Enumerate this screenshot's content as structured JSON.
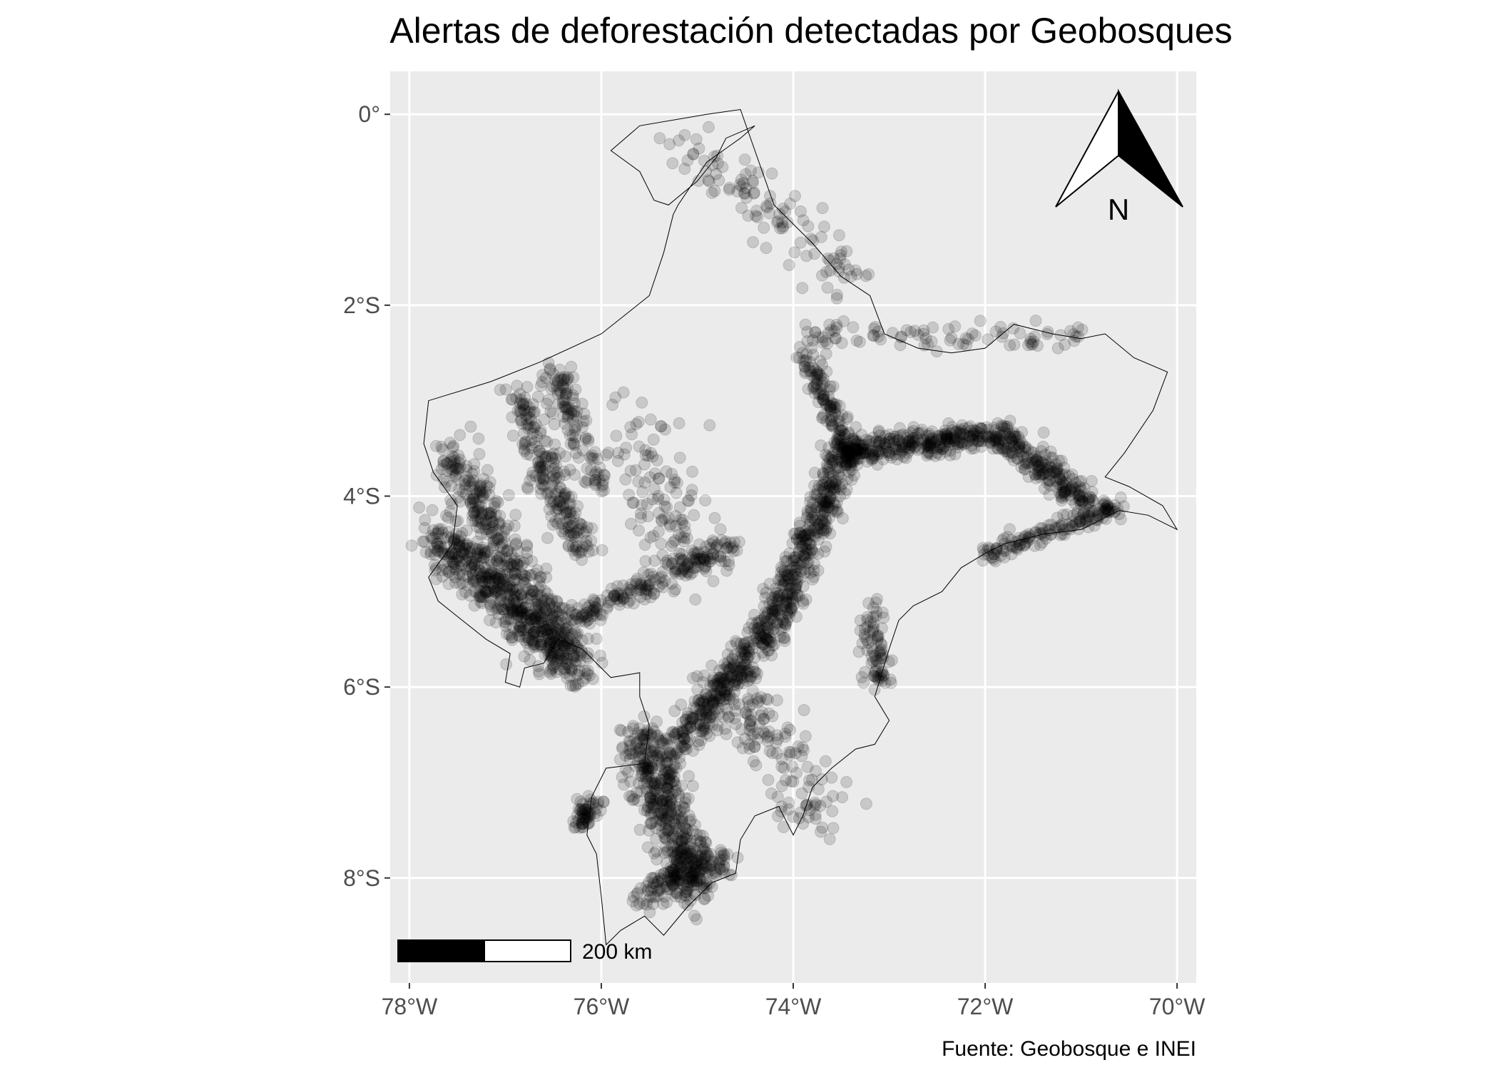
{
  "title": "Alertas de deforestación detectadas por Geobosques",
  "caption": "Fuente: Geobosque e INEI",
  "north_arrow_label": "N",
  "scale_bar_label": "200 km",
  "colors": {
    "panel_background": "#ebebeb",
    "grid_line": "#ffffff",
    "point": "#000000",
    "boundary": "#000000",
    "tick_label": "#4d4d4d"
  },
  "chart_data": {
    "type": "scatter",
    "title": "Alertas de deforestación detectadas por Geobosques",
    "caption": "Fuente: Geobosque e INEI",
    "x_axis": {
      "unit": "longitude_deg",
      "range": [
        -78.2,
        -69.8
      ],
      "ticks": [
        -78,
        -76,
        -74,
        -72,
        -70
      ],
      "tick_labels": [
        "78°W",
        "76°W",
        "74°W",
        "72°W",
        "70°W"
      ]
    },
    "y_axis": {
      "unit": "latitude_deg",
      "range": [
        -9.1,
        0.45
      ],
      "ticks": [
        0,
        -2,
        -4,
        -6,
        -8
      ],
      "tick_labels": [
        "0°",
        "2°S",
        "4°S",
        "6°S",
        "8°S"
      ]
    },
    "grid": true,
    "point_opacity": 0.15,
    "boundary_polygon": [
      [
        -74.4,
        -0.12
      ],
      [
        -74.7,
        -0.25
      ],
      [
        -74.8,
        -0.45
      ],
      [
        -75.0,
        -0.7
      ],
      [
        -75.3,
        -0.95
      ],
      [
        -75.45,
        -0.9
      ],
      [
        -75.6,
        -0.6
      ],
      [
        -75.9,
        -0.38
      ],
      [
        -75.6,
        -0.12
      ],
      [
        -74.9,
        0.0
      ],
      [
        -74.55,
        0.05
      ],
      [
        -74.2,
        -0.95
      ],
      [
        -73.8,
        -1.35
      ],
      [
        -73.5,
        -1.7
      ],
      [
        -73.2,
        -1.9
      ],
      [
        -73.05,
        -2.3
      ],
      [
        -72.7,
        -2.45
      ],
      [
        -72.35,
        -2.5
      ],
      [
        -72.0,
        -2.45
      ],
      [
        -71.7,
        -2.2
      ],
      [
        -71.3,
        -2.3
      ],
      [
        -71.0,
        -2.35
      ],
      [
        -70.75,
        -2.3
      ],
      [
        -70.45,
        -2.55
      ],
      [
        -70.1,
        -2.7
      ],
      [
        -70.25,
        -3.1
      ],
      [
        -70.55,
        -3.55
      ],
      [
        -70.75,
        -3.8
      ],
      [
        -70.5,
        -3.9
      ],
      [
        -70.15,
        -4.1
      ],
      [
        -70.0,
        -4.35
      ],
      [
        -70.3,
        -4.2
      ],
      [
        -70.6,
        -4.15
      ],
      [
        -71.0,
        -4.35
      ],
      [
        -71.4,
        -4.4
      ],
      [
        -71.8,
        -4.5
      ],
      [
        -72.0,
        -4.6
      ],
      [
        -72.25,
        -4.75
      ],
      [
        -72.45,
        -5.0
      ],
      [
        -72.75,
        -5.15
      ],
      [
        -72.9,
        -5.3
      ],
      [
        -73.0,
        -5.6
      ],
      [
        -73.15,
        -6.1
      ],
      [
        -73.0,
        -6.35
      ],
      [
        -73.15,
        -6.6
      ],
      [
        -73.35,
        -6.65
      ],
      [
        -73.6,
        -6.85
      ],
      [
        -73.8,
        -7.05
      ],
      [
        -73.9,
        -7.35
      ],
      [
        -74.0,
        -7.55
      ],
      [
        -74.15,
        -7.25
      ],
      [
        -74.4,
        -7.35
      ],
      [
        -74.55,
        -7.6
      ],
      [
        -74.6,
        -7.95
      ],
      [
        -74.85,
        -8.05
      ],
      [
        -75.1,
        -8.3
      ],
      [
        -75.35,
        -8.6
      ],
      [
        -75.55,
        -8.4
      ],
      [
        -75.8,
        -8.55
      ],
      [
        -75.95,
        -8.7
      ],
      [
        -76.0,
        -8.2
      ],
      [
        -76.05,
        -7.75
      ],
      [
        -76.15,
        -7.55
      ],
      [
        -76.1,
        -7.15
      ],
      [
        -75.95,
        -6.85
      ],
      [
        -75.55,
        -6.8
      ],
      [
        -75.5,
        -6.4
      ],
      [
        -75.6,
        -6.1
      ],
      [
        -75.6,
        -5.85
      ],
      [
        -75.9,
        -5.9
      ],
      [
        -76.2,
        -5.6
      ],
      [
        -76.45,
        -5.5
      ],
      [
        -76.6,
        -5.75
      ],
      [
        -76.8,
        -5.8
      ],
      [
        -76.85,
        -6.0
      ],
      [
        -77.0,
        -5.95
      ],
      [
        -76.95,
        -5.65
      ],
      [
        -77.2,
        -5.5
      ],
      [
        -77.45,
        -5.3
      ],
      [
        -77.7,
        -5.1
      ],
      [
        -77.8,
        -4.85
      ],
      [
        -77.55,
        -4.5
      ],
      [
        -77.5,
        -4.1
      ],
      [
        -77.75,
        -3.75
      ],
      [
        -77.85,
        -3.45
      ],
      [
        -77.8,
        -3.0
      ],
      [
        -77.15,
        -2.8
      ],
      [
        -76.65,
        -2.6
      ],
      [
        -76.0,
        -2.3
      ],
      [
        -75.5,
        -1.9
      ],
      [
        -75.35,
        -1.45
      ],
      [
        -75.25,
        -1.05
      ],
      [
        -75.2,
        -0.95
      ],
      [
        -74.9,
        -0.5
      ],
      [
        -74.55,
        -0.25
      ],
      [
        -74.4,
        -0.12
      ]
    ],
    "alert_clusters": [
      {
        "from": [
          -77.7,
          -4.4
        ],
        "to": [
          -76.2,
          -5.9
        ],
        "spread": 0.22,
        "count": 520
      },
      {
        "from": [
          -77.55,
          -3.6
        ],
        "to": [
          -76.3,
          -5.7
        ],
        "spread": 0.18,
        "count": 360
      },
      {
        "from": [
          -76.9,
          -2.9
        ],
        "to": [
          -76.2,
          -4.6
        ],
        "spread": 0.15,
        "count": 220
      },
      {
        "from": [
          -76.5,
          -2.7
        ],
        "to": [
          -76.0,
          -3.9
        ],
        "spread": 0.13,
        "count": 120
      },
      {
        "from": [
          -76.3,
          -5.3
        ],
        "to": [
          -74.6,
          -4.5
        ],
        "spread": 0.12,
        "count": 200
      },
      {
        "from": [
          -73.4,
          -3.4
        ],
        "to": [
          -74.2,
          -5.3
        ],
        "spread": 0.16,
        "count": 420
      },
      {
        "from": [
          -74.2,
          -5.3
        ],
        "to": [
          -75.2,
          -6.6
        ],
        "spread": 0.16,
        "count": 320
      },
      {
        "from": [
          -75.6,
          -6.5
        ],
        "to": [
          -75.0,
          -8.1
        ],
        "spread": 0.22,
        "count": 480
      },
      {
        "from": [
          -75.6,
          -8.2
        ],
        "to": [
          -74.7,
          -7.8
        ],
        "spread": 0.12,
        "count": 140
      },
      {
        "from": [
          -76.1,
          -7.2
        ],
        "to": [
          -76.2,
          -7.45
        ],
        "spread": 0.09,
        "count": 60
      },
      {
        "from": [
          -73.5,
          -3.55
        ],
        "to": [
          -71.9,
          -3.35
        ],
        "spread": 0.12,
        "count": 320
      },
      {
        "from": [
          -71.9,
          -3.3
        ],
        "to": [
          -70.9,
          -4.1
        ],
        "spread": 0.13,
        "count": 240
      },
      {
        "from": [
          -72.0,
          -4.6
        ],
        "to": [
          -70.6,
          -4.1
        ],
        "spread": 0.08,
        "count": 150
      },
      {
        "from": [
          -73.9,
          -2.5
        ],
        "to": [
          -73.4,
          -3.5
        ],
        "spread": 0.1,
        "count": 120
      },
      {
        "from": [
          -73.9,
          -2.3
        ],
        "to": [
          -71.0,
          -2.35
        ],
        "spread": 0.12,
        "count": 90
      },
      {
        "from": [
          -75.2,
          -0.3
        ],
        "to": [
          -73.3,
          -1.8
        ],
        "spread": 0.25,
        "count": 110
      },
      {
        "from": [
          -73.2,
          -5.1
        ],
        "to": [
          -73.1,
          -6.0
        ],
        "spread": 0.12,
        "count": 80
      },
      {
        "from": [
          -74.8,
          -5.8
        ],
        "to": [
          -73.7,
          -7.4
        ],
        "spread": 0.3,
        "count": 160
      },
      {
        "from": [
          -75.6,
          -3.2
        ],
        "to": [
          -75.2,
          -4.8
        ],
        "spread": 0.3,
        "count": 120
      }
    ],
    "north_arrow": {
      "label": "N",
      "placement": "top-right"
    },
    "scale_bar": {
      "label": "200 km",
      "placement": "bottom-left"
    }
  }
}
